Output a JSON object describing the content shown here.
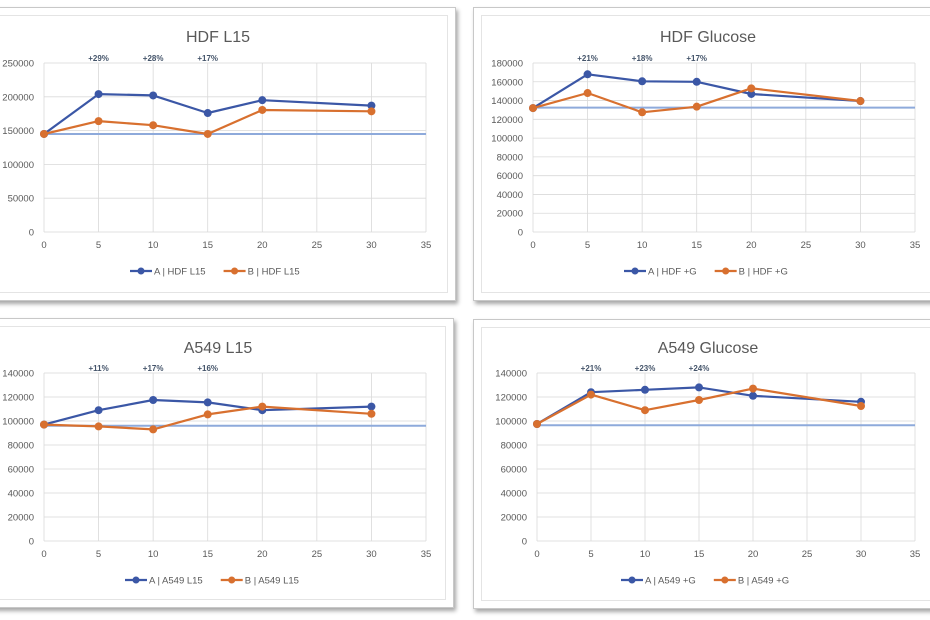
{
  "colors": {
    "series_a": "#3b57a6",
    "series_b": "#d8702f",
    "baseline": "#8eaadb",
    "annotation": "#44546a"
  },
  "chart_data": [
    {
      "id": "hdf-l15",
      "type": "line",
      "title": "HDF L15",
      "xlabel": "",
      "ylabel": "",
      "xlim": [
        0,
        35
      ],
      "ylim": [
        0,
        250000
      ],
      "xticks": [
        "0",
        "5",
        "10",
        "15",
        "20",
        "25",
        "30",
        "35"
      ],
      "yticks": [
        "0",
        "50000",
        "100000",
        "150000",
        "200000",
        "250000"
      ],
      "grid": true,
      "legend_position": "bottom",
      "x": [
        0,
        5,
        10,
        15,
        20,
        30
      ],
      "series": [
        {
          "name": "A | HDF L15",
          "values": [
            145000,
            204000,
            202000,
            176000,
            195000,
            187000
          ]
        },
        {
          "name": "B | HDF L15",
          "values": [
            145000,
            164000,
            158000,
            145000,
            180500,
            178500
          ]
        }
      ],
      "baseline": 145000,
      "annotations": [
        {
          "x": 5,
          "text": "+29%"
        },
        {
          "x": 10,
          "text": "+28%"
        },
        {
          "x": 15,
          "text": "+17%"
        }
      ]
    },
    {
      "id": "hdf-glucose",
      "type": "line",
      "title": "HDF Glucose",
      "xlabel": "",
      "ylabel": "",
      "xlim": [
        0,
        35
      ],
      "ylim": [
        0,
        180000
      ],
      "xticks": [
        "0",
        "5",
        "10",
        "15",
        "20",
        "25",
        "30",
        "35"
      ],
      "yticks": [
        "0",
        "20000",
        "40000",
        "60000",
        "80000",
        "100000",
        "120000",
        "140000",
        "160000",
        "180000"
      ],
      "grid": true,
      "legend_position": "bottom",
      "x": [
        0,
        5,
        10,
        15,
        20,
        30
      ],
      "series": [
        {
          "name": "A | HDF +G",
          "values": [
            132000,
            168000,
            160500,
            160000,
            147000,
            139500
          ]
        },
        {
          "name": "B | HDF +G",
          "values": [
            132000,
            148000,
            127500,
            133500,
            153000,
            139500
          ]
        }
      ],
      "baseline": 132500,
      "annotations": [
        {
          "x": 5,
          "text": "+21%"
        },
        {
          "x": 10,
          "text": "+18%"
        },
        {
          "x": 15,
          "text": "+17%"
        }
      ]
    },
    {
      "id": "a549-l15",
      "type": "line",
      "title": "A549 L15",
      "xlabel": "",
      "ylabel": "",
      "xlim": [
        0,
        35
      ],
      "ylim": [
        0,
        140000
      ],
      "xticks": [
        "0",
        "5",
        "10",
        "15",
        "20",
        "25",
        "30",
        "35"
      ],
      "yticks": [
        "0",
        "20000",
        "40000",
        "60000",
        "80000",
        "100000",
        "120000",
        "140000"
      ],
      "grid": true,
      "legend_position": "bottom",
      "x": [
        0,
        5,
        10,
        15,
        20,
        30
      ],
      "series": [
        {
          "name": "A | A549 L15",
          "values": [
            97000,
            109000,
            117500,
            115500,
            109000,
            112000
          ]
        },
        {
          "name": "B | A549 L15",
          "values": [
            97000,
            95500,
            93000,
            105500,
            112000,
            106000
          ]
        }
      ],
      "baseline": 96000,
      "annotations": [
        {
          "x": 5,
          "text": "+11%"
        },
        {
          "x": 10,
          "text": "+17%"
        },
        {
          "x": 15,
          "text": "+16%"
        }
      ]
    },
    {
      "id": "a549-glucose",
      "type": "line",
      "title": "A549 Glucose",
      "xlabel": "",
      "ylabel": "",
      "xlim": [
        0,
        35
      ],
      "ylim": [
        0,
        140000
      ],
      "xticks": [
        "0",
        "5",
        "10",
        "15",
        "20",
        "25",
        "30",
        "35"
      ],
      "yticks": [
        "0",
        "20000",
        "40000",
        "60000",
        "80000",
        "100000",
        "120000",
        "140000"
      ],
      "grid": true,
      "legend_position": "bottom",
      "x": [
        0,
        5,
        10,
        15,
        20,
        30
      ],
      "series": [
        {
          "name": "A | A549 +G",
          "values": [
            97500,
            124000,
            126000,
            128000,
            121000,
            116000
          ]
        },
        {
          "name": "B | A549 +G",
          "values": [
            97500,
            122000,
            109000,
            117500,
            127000,
            112500
          ]
        }
      ],
      "baseline": 96500,
      "annotations": [
        {
          "x": 5,
          "text": "+21%"
        },
        {
          "x": 10,
          "text": "+23%"
        },
        {
          "x": 15,
          "text": "+24%"
        }
      ]
    }
  ]
}
